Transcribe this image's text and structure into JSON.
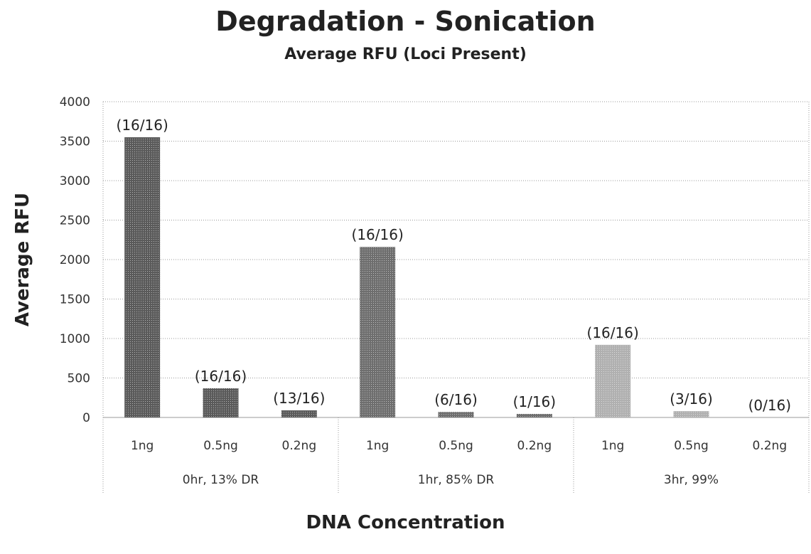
{
  "chart_data": {
    "type": "bar",
    "title": "Degradation - Sonication",
    "subtitle": "Average RFU (Loci Present)",
    "xlabel": "DNA Concentration",
    "ylabel": "Average RFU",
    "ylim": [
      0,
      4000
    ],
    "yticks": [
      0,
      500,
      1000,
      1500,
      2000,
      2500,
      3000,
      3500,
      4000
    ],
    "grid": true,
    "groups": [
      {
        "name": "0hr, 13% DR",
        "color": "#5a5a5a",
        "bars": [
          {
            "category": "1ng",
            "value": 3550,
            "label": "(16/16)"
          },
          {
            "category": "0.5ng",
            "value": 370,
            "label": "(16/16)"
          },
          {
            "category": "0.2ng",
            "value": 90,
            "label": "(13/16)"
          }
        ]
      },
      {
        "name": "1hr, 85% DR",
        "color": "#6e6e6e",
        "bars": [
          {
            "category": "1ng",
            "value": 2160,
            "label": "(16/16)"
          },
          {
            "category": "0.5ng",
            "value": 70,
            "label": "(6/16)"
          },
          {
            "category": "0.2ng",
            "value": 45,
            "label": "(1/16)"
          }
        ]
      },
      {
        "name": "3hr, 99%",
        "color": "#b0b0b0",
        "bars": [
          {
            "category": "1ng",
            "value": 920,
            "label": "(16/16)"
          },
          {
            "category": "0.5ng",
            "value": 80,
            "label": "(3/16)"
          },
          {
            "category": "0.2ng",
            "value": 0,
            "label": "(0/16)"
          }
        ]
      }
    ]
  }
}
